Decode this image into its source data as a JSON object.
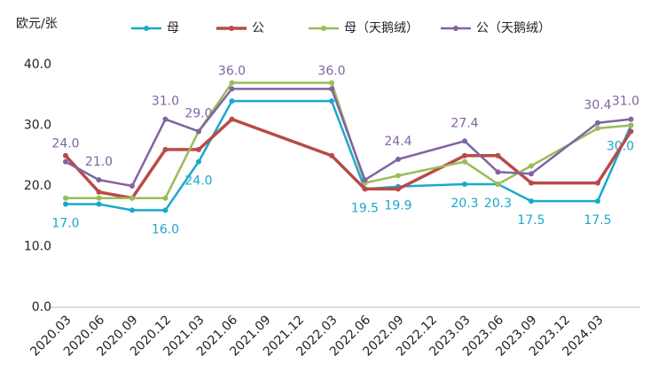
{
  "chart_data": {
    "type": "line",
    "ylabel": "欧元/张",
    "categories": [
      "2020.03",
      "2020.06",
      "2020.09",
      "2020.12",
      "2021.03",
      "2021.06",
      "2021.09",
      "2021.12",
      "2022.03",
      "2022.06",
      "2022.09",
      "2022.12",
      "2023.03",
      "2023.06",
      "2023.09",
      "2023.12",
      "2024.03",
      null
    ],
    "series": [
      {
        "name": "母",
        "color": "#1ba8cc",
        "values": [
          17.0,
          17.0,
          16.0,
          16.0,
          24.0,
          34.0,
          null,
          null,
          34.0,
          19.5,
          19.9,
          null,
          20.3,
          20.3,
          17.5,
          null,
          17.5,
          30.0
        ],
        "value_labels": [
          "17.0",
          null,
          null,
          "16.0",
          "24.0",
          null,
          null,
          null,
          null,
          "19.5",
          "19.9",
          null,
          "20.3",
          "20.3",
          "17.5",
          null,
          "17.5",
          "30.0"
        ]
      },
      {
        "name": "公",
        "color": "#b94a48",
        "values": [
          25.0,
          19.0,
          18.0,
          26.0,
          26.0,
          31.0,
          null,
          null,
          25.0,
          19.5,
          19.5,
          null,
          25.0,
          25.0,
          20.5,
          null,
          20.5,
          29.0
        ]
      },
      {
        "name": "母（天鹅绒）",
        "color": "#9bbb59",
        "values": [
          18.0,
          18.0,
          18.0,
          18.0,
          29.0,
          37.0,
          null,
          null,
          37.0,
          20.5,
          21.7,
          null,
          24.0,
          20.3,
          23.3,
          null,
          29.5,
          30.0
        ]
      },
      {
        "name": "公（天鹅绒）",
        "color": "#8064a2",
        "values": [
          24.0,
          21.0,
          20.0,
          31.0,
          29.0,
          36.0,
          null,
          null,
          36.0,
          21.0,
          24.4,
          null,
          27.4,
          22.3,
          22.0,
          null,
          30.4,
          31.0
        ],
        "value_labels": [
          "24.0",
          "21.0",
          null,
          "31.0",
          "29.0",
          "36.0",
          null,
          null,
          "36.0",
          null,
          "24.4",
          null,
          "27.4",
          null,
          null,
          null,
          "30.4",
          "31.0"
        ]
      }
    ],
    "ylim": [
      0,
      40
    ],
    "yticks": [
      {
        "value": 0,
        "label": "0.0"
      },
      {
        "value": 10,
        "label": "10.0"
      },
      {
        "value": 20,
        "label": "20.0"
      },
      {
        "value": 30,
        "label": "30.0"
      },
      {
        "value": 40,
        "label": "40.0"
      }
    ],
    "grid": false,
    "connect_gaps": true,
    "legend": "top"
  }
}
